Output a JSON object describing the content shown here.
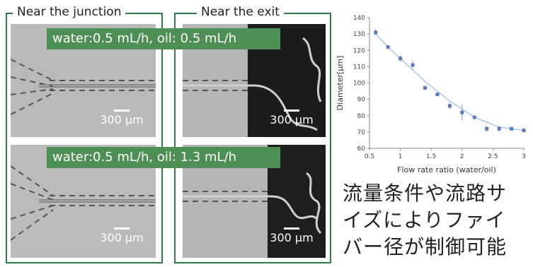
{
  "panels": {
    "left_title": "Near the junction",
    "right_title": "Near the exit",
    "scale_label": "300 μm",
    "row1_condition": "water:0.5 mL/h, oil: 0.5 mL/h",
    "row2_condition": "water:0.5 mL/h, oil: 1.3 mL/h"
  },
  "caption": {
    "lines": [
      "流量条件や流路サ",
      "イズによりファイ",
      "バー径が制御可能"
    ]
  },
  "colors": {
    "frame": "#2e7d4a",
    "banner": "#4e8f55",
    "marker": "#5b7bb8",
    "fit_line": "#a9c8e8"
  },
  "chart_data": {
    "type": "scatter",
    "title": "",
    "xlabel": "Flow rate ratio (water/oil)",
    "ylabel": "Diameter[μm]",
    "xlim": [
      0.5,
      3
    ],
    "ylim": [
      60,
      140
    ],
    "xticks": [
      "0.5",
      "1",
      "1.5",
      "2",
      "2.5",
      "3"
    ],
    "yticks": [
      "60",
      "70",
      "80",
      "90",
      "100",
      "110",
      "120",
      "130",
      "140"
    ],
    "grid": false,
    "series": [
      {
        "x": [
          0.6,
          0.8,
          1.0,
          1.2,
          1.4,
          1.6,
          1.8,
          2.0,
          2.2,
          2.4,
          2.6,
          2.8,
          3.0
        ],
        "y": [
          131,
          122,
          115,
          111,
          97,
          93,
          86,
          82,
          79,
          72,
          72,
          72,
          71
        ],
        "err": [
          2,
          1,
          2,
          3,
          1,
          1,
          2,
          5,
          1,
          2,
          2,
          1,
          1
        ]
      }
    ],
    "fit": {
      "x": [
        0.6,
        0.8,
        1.0,
        1.2,
        1.4,
        1.6,
        1.8,
        2.0,
        2.2,
        2.4,
        2.6,
        2.8,
        3.0
      ],
      "y": [
        130,
        122,
        115,
        108,
        101,
        95,
        89,
        84,
        79,
        76,
        73,
        72,
        71
      ]
    }
  }
}
